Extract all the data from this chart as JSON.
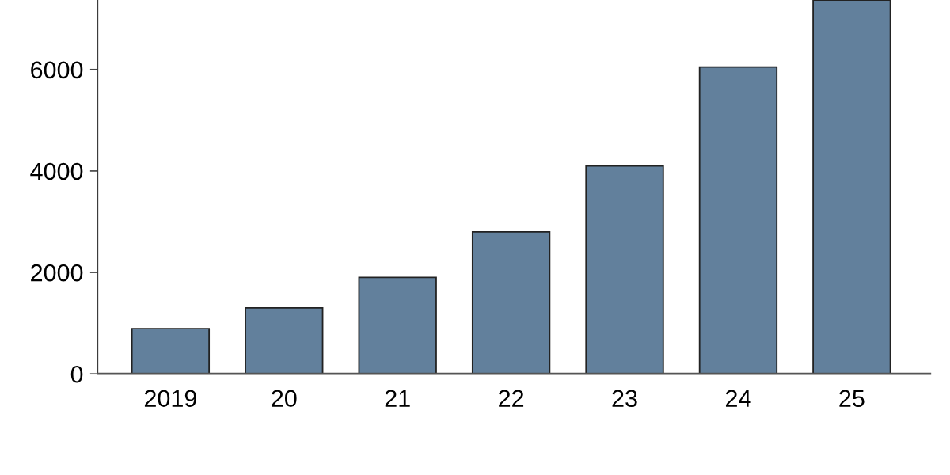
{
  "chart_data": {
    "type": "bar",
    "categories": [
      "2019",
      "20",
      "21",
      "22",
      "23",
      "24",
      "25"
    ],
    "values": [
      890,
      1300,
      1900,
      2800,
      4100,
      6050,
      7370
    ],
    "color": "#62809c",
    "ylim": [
      0,
      7370
    ],
    "yticks": [
      0,
      2000,
      4000,
      6000
    ],
    "grid": false
  }
}
